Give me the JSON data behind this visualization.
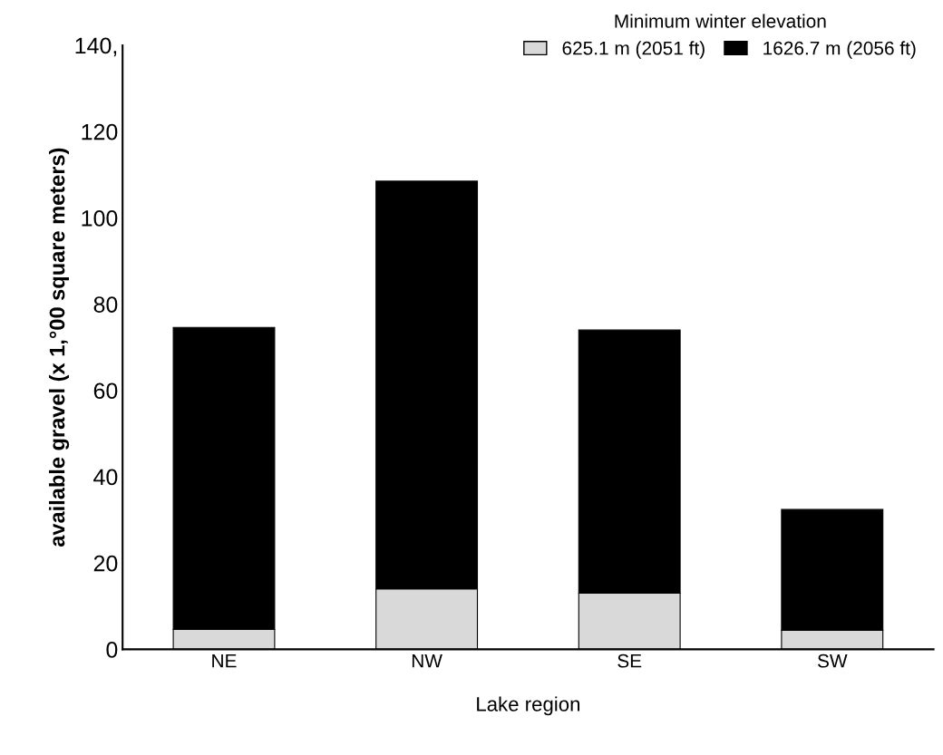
{
  "chart_data": {
    "type": "bar",
    "stacked": true,
    "xlabel": "Lake region",
    "ylabel": "available gravel (x 1,°00 square meters)",
    "legend_title": "Minimum winter elevation",
    "legend": "top right",
    "grid": false,
    "categories": [
      "NE",
      "NW",
      "SE",
      "SW"
    ],
    "series": [
      {
        "name": "625.1 m (2051 ft)",
        "color": "#d9d9d9",
        "values": [
          4.6,
          14,
          13,
          4.4
        ]
      },
      {
        "name": "1626.7 m (2056 ft)",
        "color": "#000000",
        "values": [
          70,
          94.5,
          61,
          28
        ]
      }
    ],
    "ylim": [
      0,
      140
    ],
    "yticks": [
      0,
      20,
      40,
      60,
      80,
      100,
      120,
      {
        "value": 140,
        "label": "140,"
      }
    ]
  }
}
